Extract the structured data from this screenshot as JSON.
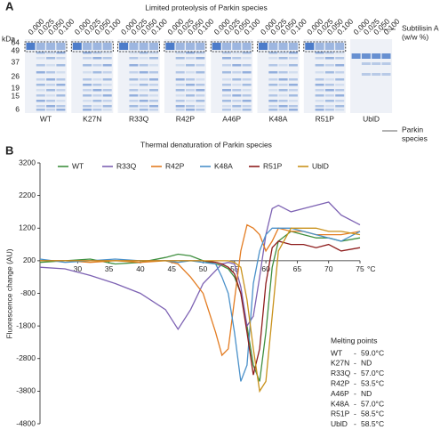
{
  "panel_a": {
    "label": "A",
    "title": "Limited proteolysis of Parkin species",
    "kda_label": "kDa",
    "mw_markers": [
      "64",
      "49",
      "37",
      "26",
      "19",
      "15",
      "6"
    ],
    "concentrations": [
      "0.000",
      "0.025",
      "0.050",
      "0.100"
    ],
    "samples": [
      "WT",
      "K27N",
      "R33Q",
      "R42P",
      "A46P",
      "K48A",
      "R51P",
      "UblD"
    ],
    "subtilisin_label": [
      "Subtilisin A",
      "(w/w %)"
    ],
    "parkin_label": [
      "Parkin",
      "species"
    ]
  },
  "chart_data": {
    "type": "line",
    "panel_label": "B",
    "title": "Thermal denaturation of Parkin species",
    "ylabel": "Fluorescence change (AU)",
    "xunit": "°C",
    "x": [
      24,
      28,
      32,
      36,
      40,
      44,
      46,
      48,
      50,
      52,
      53,
      54,
      55,
      56,
      57,
      58,
      59,
      60,
      61,
      62,
      64,
      66,
      68,
      70,
      72,
      75
    ],
    "xlim": [
      24,
      75
    ],
    "xticks": [
      30,
      35,
      40,
      45,
      50,
      55,
      60,
      65,
      70,
      75
    ],
    "ylim": [
      -4800,
      3200
    ],
    "yticks": [
      3200,
      2200,
      1200,
      200,
      -800,
      -1800,
      -2800,
      -3800,
      -4800
    ],
    "x_axis_position": 200,
    "legend_position": "top-left",
    "series": [
      {
        "name": "WT",
        "color": "#3f8f3f",
        "values": [
          150,
          200,
          250,
          100,
          150,
          300,
          400,
          350,
          200,
          100,
          50,
          -50,
          -300,
          -800,
          -1800,
          -3000,
          -3500,
          -2000,
          0,
          800,
          1100,
          1000,
          900,
          900,
          800,
          900
        ]
      },
      {
        "name": "R33Q",
        "color": "#7d62b3",
        "values": [
          0,
          -50,
          -250,
          -500,
          -800,
          -1300,
          -1900,
          -1300,
          -500,
          -100,
          100,
          150,
          100,
          -600,
          -1800,
          -1500,
          -300,
          1000,
          1800,
          1900,
          1700,
          1800,
          1900,
          2000,
          1600,
          1300
        ]
      },
      {
        "name": "R42P",
        "color": "#e37c22",
        "values": [
          200,
          200,
          150,
          200,
          150,
          200,
          100,
          -300,
          -800,
          -2000,
          -2700,
          -2500,
          -1000,
          500,
          1300,
          1200,
          1000,
          500,
          800,
          1200,
          1100,
          1100,
          1000,
          1000,
          1000,
          1100
        ]
      },
      {
        "name": "K48A",
        "color": "#4a90c9",
        "values": [
          250,
          150,
          200,
          250,
          200,
          200,
          150,
          200,
          150,
          100,
          -300,
          -800,
          -2000,
          -3500,
          -3000,
          -500,
          500,
          1000,
          1200,
          1200,
          1200,
          1100,
          1000,
          900,
          800,
          1100
        ]
      },
      {
        "name": "R51P",
        "color": "#8e1d1d",
        "values": [
          200,
          200,
          200,
          200,
          200,
          200,
          200,
          200,
          200,
          150,
          100,
          0,
          -200,
          -800,
          -2000,
          -3300,
          -2500,
          -500,
          600,
          800,
          700,
          700,
          600,
          700,
          500,
          600
        ]
      },
      {
        "name": "UblD",
        "color": "#c9921c",
        "values": [
          200,
          200,
          200,
          200,
          200,
          200,
          200,
          200,
          200,
          200,
          200,
          200,
          150,
          0,
          -1000,
          -2500,
          -3800,
          -3500,
          -1500,
          500,
          1200,
          1200,
          1200,
          1100,
          1100,
          1000
        ]
      }
    ]
  },
  "melting_points": {
    "title": "Melting points",
    "separator": "-",
    "rows": [
      {
        "name": "WT",
        "value": "59.0°C"
      },
      {
        "name": "K27N",
        "value": "ND"
      },
      {
        "name": "R33Q",
        "value": "57.0°C"
      },
      {
        "name": "R42P",
        "value": "53.5°C"
      },
      {
        "name": "A46P",
        "value": "ND"
      },
      {
        "name": "K48A",
        "value": "57.0°C"
      },
      {
        "name": "R51P",
        "value": "58.5°C"
      },
      {
        "name": "UblD",
        "value": "58.5°C"
      }
    ]
  }
}
